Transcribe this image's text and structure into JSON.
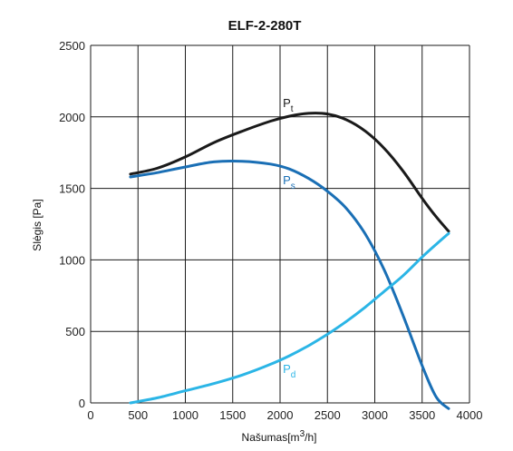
{
  "chart_data": {
    "type": "line",
    "title": "ELF-2-280T",
    "xlabel": {
      "main": "Našumas",
      "unit_pre": "[m",
      "unit_sup": "3",
      "unit_post": "/h]"
    },
    "ylabel": "Slėgis [Pa]",
    "xlim": [
      0,
      4000
    ],
    "ylim": [
      0,
      2500
    ],
    "x_ticks": [
      "0",
      "500",
      "1000",
      "1500",
      "2000",
      "2500",
      "3000",
      "3500",
      "4000"
    ],
    "y_ticks": [
      "0",
      "500",
      "1000",
      "1500",
      "2000",
      "2500"
    ],
    "grid": true,
    "series": [
      {
        "name": "Pt",
        "label_main": "P",
        "label_sub": "t",
        "color": "#1a1a1a",
        "label_at": [
          2030,
          2070
        ],
        "x": [
          420,
          700,
          1000,
          1300,
          1600,
          1900,
          2100,
          2300,
          2500,
          2700,
          2900,
          3100,
          3300,
          3500,
          3650,
          3780
        ],
        "y": [
          1600,
          1640,
          1720,
          1820,
          1900,
          1970,
          2005,
          2025,
          2020,
          1980,
          1900,
          1780,
          1620,
          1430,
          1300,
          1200
        ]
      },
      {
        "name": "Ps",
        "label_main": "P",
        "label_sub": "s",
        "color": "#1a6fb5",
        "label_at": [
          2030,
          1530
        ],
        "x": [
          420,
          700,
          1000,
          1300,
          1600,
          1900,
          2100,
          2300,
          2500,
          2700,
          2900,
          3100,
          3300,
          3500,
          3650,
          3780
        ],
        "y": [
          1580,
          1610,
          1650,
          1685,
          1690,
          1670,
          1635,
          1570,
          1480,
          1360,
          1180,
          930,
          610,
          260,
          40,
          -40
        ]
      },
      {
        "name": "Pd",
        "label_main": "P",
        "label_sub": "d",
        "color": "#2bb5e6",
        "label_at": [
          2030,
          210
        ],
        "x": [
          420,
          700,
          1000,
          1300,
          1600,
          1900,
          2100,
          2300,
          2500,
          2700,
          2900,
          3100,
          3300,
          3500,
          3650,
          3780
        ],
        "y": [
          0,
          35,
          85,
          135,
          195,
          270,
          330,
          400,
          480,
          570,
          670,
          780,
          890,
          1020,
          1110,
          1185
        ]
      }
    ]
  }
}
